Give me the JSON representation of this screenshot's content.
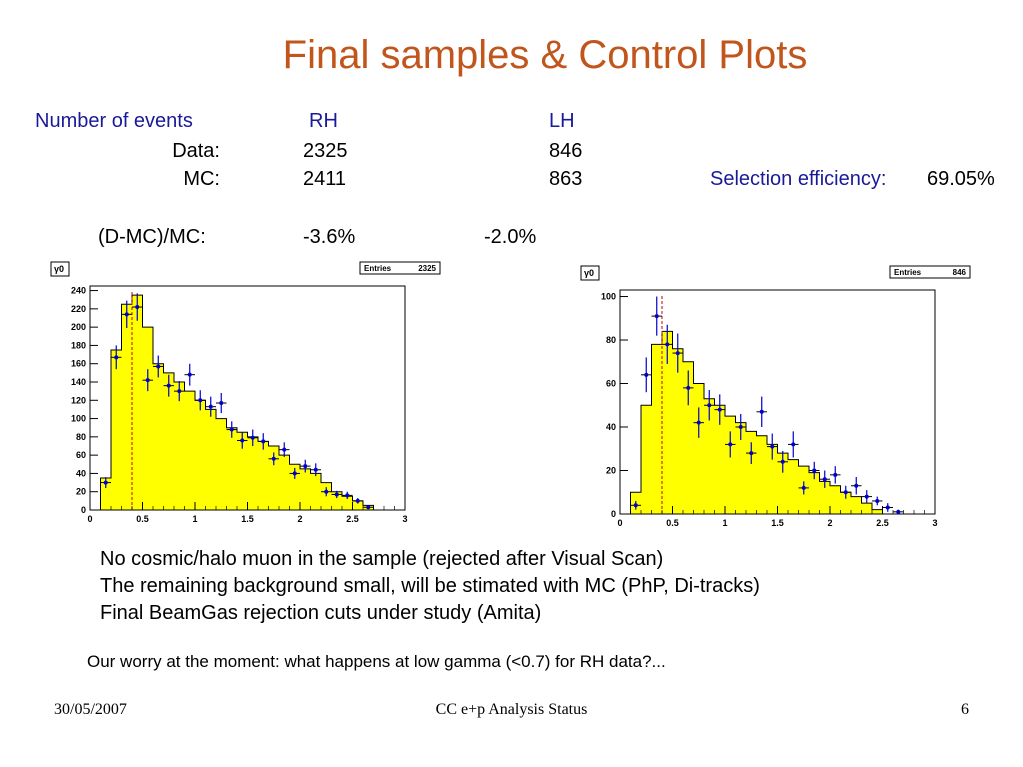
{
  "title": "Final samples & Control Plots",
  "table": {
    "header_label": "Number of events",
    "col_rh": "RH",
    "col_lh": "LH",
    "data_label": "Data:",
    "data_rh": "2325",
    "data_lh": "846",
    "mc_label": "MC:",
    "mc_rh": "2411",
    "mc_lh": "863",
    "diff_label": "(D-MC)/MC:",
    "diff_rh": "-3.6%",
    "diff_lh": "-2.0%",
    "eff_label": "Selection efficiency:",
    "eff_value": "69.05%"
  },
  "chart_data": [
    {
      "type": "bar",
      "yaxis_label": "γ0",
      "stats_label": "Entries",
      "stats_value": "2325",
      "xlim": [
        0,
        3
      ],
      "ylim": [
        0,
        245
      ],
      "xticks": [
        0,
        0.5,
        1,
        1.5,
        2,
        2.5,
        3
      ],
      "xtick_labels": [
        "0",
        "0.5",
        "1",
        "1.5",
        "2",
        "2.5",
        "3"
      ],
      "yticks": [
        0,
        20,
        40,
        60,
        80,
        100,
        120,
        140,
        160,
        180,
        200,
        220,
        240
      ],
      "ytick_labels": [
        "0",
        "20",
        "40",
        "60",
        "80",
        "100",
        "120",
        "140",
        "160",
        "180",
        "200",
        "220",
        "240"
      ],
      "cut_line_x": 0.4,
      "bin_width": 0.1,
      "mc_bins": [
        0,
        35,
        175,
        225,
        235,
        200,
        160,
        150,
        140,
        130,
        120,
        110,
        100,
        90,
        85,
        80,
        75,
        70,
        60,
        50,
        45,
        40,
        30,
        20,
        15,
        10,
        5,
        0,
        0,
        0
      ],
      "data_points": [
        {
          "x": 0.15,
          "y": 30,
          "e": 6
        },
        {
          "x": 0.25,
          "y": 167,
          "e": 13
        },
        {
          "x": 0.35,
          "y": 214,
          "e": 15
        },
        {
          "x": 0.45,
          "y": 222,
          "e": 15
        },
        {
          "x": 0.55,
          "y": 142,
          "e": 12
        },
        {
          "x": 0.65,
          "y": 157,
          "e": 12
        },
        {
          "x": 0.75,
          "y": 136,
          "e": 12
        },
        {
          "x": 0.85,
          "y": 130,
          "e": 11
        },
        {
          "x": 0.95,
          "y": 148,
          "e": 12
        },
        {
          "x": 1.05,
          "y": 120,
          "e": 11
        },
        {
          "x": 1.15,
          "y": 113,
          "e": 11
        },
        {
          "x": 1.25,
          "y": 117,
          "e": 11
        },
        {
          "x": 1.35,
          "y": 88,
          "e": 9
        },
        {
          "x": 1.45,
          "y": 76,
          "e": 9
        },
        {
          "x": 1.55,
          "y": 79,
          "e": 9
        },
        {
          "x": 1.65,
          "y": 75,
          "e": 9
        },
        {
          "x": 1.75,
          "y": 56,
          "e": 7
        },
        {
          "x": 1.85,
          "y": 66,
          "e": 8
        },
        {
          "x": 1.95,
          "y": 40,
          "e": 6
        },
        {
          "x": 2.05,
          "y": 48,
          "e": 7
        },
        {
          "x": 2.15,
          "y": 44,
          "e": 7
        },
        {
          "x": 2.25,
          "y": 20,
          "e": 5
        },
        {
          "x": 2.35,
          "y": 17,
          "e": 4
        },
        {
          "x": 2.45,
          "y": 16,
          "e": 4
        },
        {
          "x": 2.55,
          "y": 10,
          "e": 3
        },
        {
          "x": 2.65,
          "y": 3,
          "e": 2
        }
      ]
    },
    {
      "type": "bar",
      "yaxis_label": "γ0",
      "stats_label": "Entries",
      "stats_value": "846",
      "xlim": [
        0,
        3
      ],
      "ylim": [
        0,
        103
      ],
      "xticks": [
        0,
        0.5,
        1,
        1.5,
        2,
        2.5,
        3
      ],
      "xtick_labels": [
        "0",
        "0.5",
        "1",
        "1.5",
        "2",
        "2.5",
        "3"
      ],
      "yticks": [
        0,
        20,
        40,
        60,
        80,
        100
      ],
      "ytick_labels": [
        "0",
        "20",
        "40",
        "60",
        "80",
        "100"
      ],
      "cut_line_x": 0.4,
      "bin_width": 0.1,
      "mc_bins": [
        0,
        10,
        50,
        78,
        84,
        76,
        70,
        60,
        53,
        50,
        45,
        42,
        38,
        36,
        32,
        28,
        25,
        22,
        19,
        15,
        13,
        10,
        8,
        5,
        2,
        0,
        0,
        0,
        0,
        0
      ],
      "data_points": [
        {
          "x": 0.15,
          "y": 4,
          "e": 2
        },
        {
          "x": 0.25,
          "y": 64,
          "e": 8
        },
        {
          "x": 0.35,
          "y": 91,
          "e": 9
        },
        {
          "x": 0.45,
          "y": 78,
          "e": 9
        },
        {
          "x": 0.55,
          "y": 74,
          "e": 9
        },
        {
          "x": 0.65,
          "y": 58,
          "e": 8
        },
        {
          "x": 0.75,
          "y": 42,
          "e": 7
        },
        {
          "x": 0.85,
          "y": 50,
          "e": 7
        },
        {
          "x": 0.95,
          "y": 48,
          "e": 7
        },
        {
          "x": 1.05,
          "y": 32,
          "e": 6
        },
        {
          "x": 1.15,
          "y": 40,
          "e": 6
        },
        {
          "x": 1.25,
          "y": 28,
          "e": 5
        },
        {
          "x": 1.35,
          "y": 47,
          "e": 7
        },
        {
          "x": 1.45,
          "y": 31,
          "e": 6
        },
        {
          "x": 1.55,
          "y": 24,
          "e": 5
        },
        {
          "x": 1.65,
          "y": 32,
          "e": 6
        },
        {
          "x": 1.75,
          "y": 12,
          "e": 3
        },
        {
          "x": 1.85,
          "y": 20,
          "e": 4
        },
        {
          "x": 1.95,
          "y": 16,
          "e": 4
        },
        {
          "x": 2.05,
          "y": 18,
          "e": 4
        },
        {
          "x": 2.15,
          "y": 10,
          "e": 3
        },
        {
          "x": 2.25,
          "y": 13,
          "e": 4
        },
        {
          "x": 2.35,
          "y": 8,
          "e": 3
        },
        {
          "x": 2.45,
          "y": 6,
          "e": 2
        },
        {
          "x": 2.55,
          "y": 3,
          "e": 2
        },
        {
          "x": 2.65,
          "y": 1,
          "e": 1
        }
      ]
    }
  ],
  "bullets": [
    "No cosmic/halo muon in the sample (rejected after Visual Scan)",
    "The remaining background small, will be stimated with MC (PhP, Di-tracks)",
    "Final BeamGas rejection cuts under study (Amita)"
  ],
  "worry": "Our worry at the moment: what happens at low gamma (<0.7) for RH data?...",
  "footer": {
    "date": "30/05/2007",
    "center": "CC e+p Analysis Status",
    "page": "6"
  },
  "colors": {
    "title": "#c0561c",
    "table_header": "#1a1a99",
    "mc_fill": "#ffff00",
    "data_marker": "#0000cc",
    "cut_line": "#cc0000"
  }
}
